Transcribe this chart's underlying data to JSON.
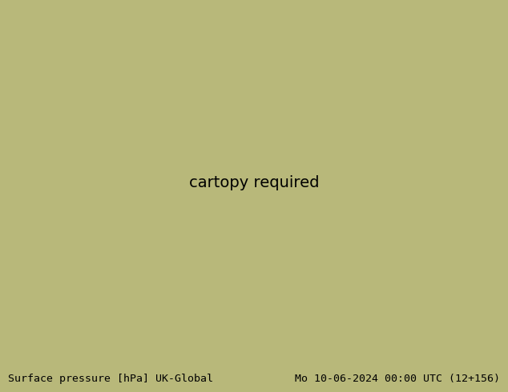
{
  "title_left": "Surface pressure [hPa] UK-Global",
  "title_right": "Mo 10-06-2024 00:00 UTC (12+156)",
  "title_fontsize": 9.5,
  "fig_width": 6.34,
  "fig_height": 4.9,
  "dpi": 100,
  "background_land_color": "#b8b87a",
  "ocean_color": "#b0b0b0",
  "cone_color": "#e0e0e0",
  "green_fill_color": "#90c878",
  "land_in_cone_color": "#b8b87a",
  "coastline_color": "#707060",
  "isobar_blue": "#1a1aff",
  "isobar_red": "#cc1100",
  "isobar_black": "#000000",
  "bottom_bg": "#c8c8c8",
  "label_fontsize": 6.5,
  "line_width": 0.9
}
